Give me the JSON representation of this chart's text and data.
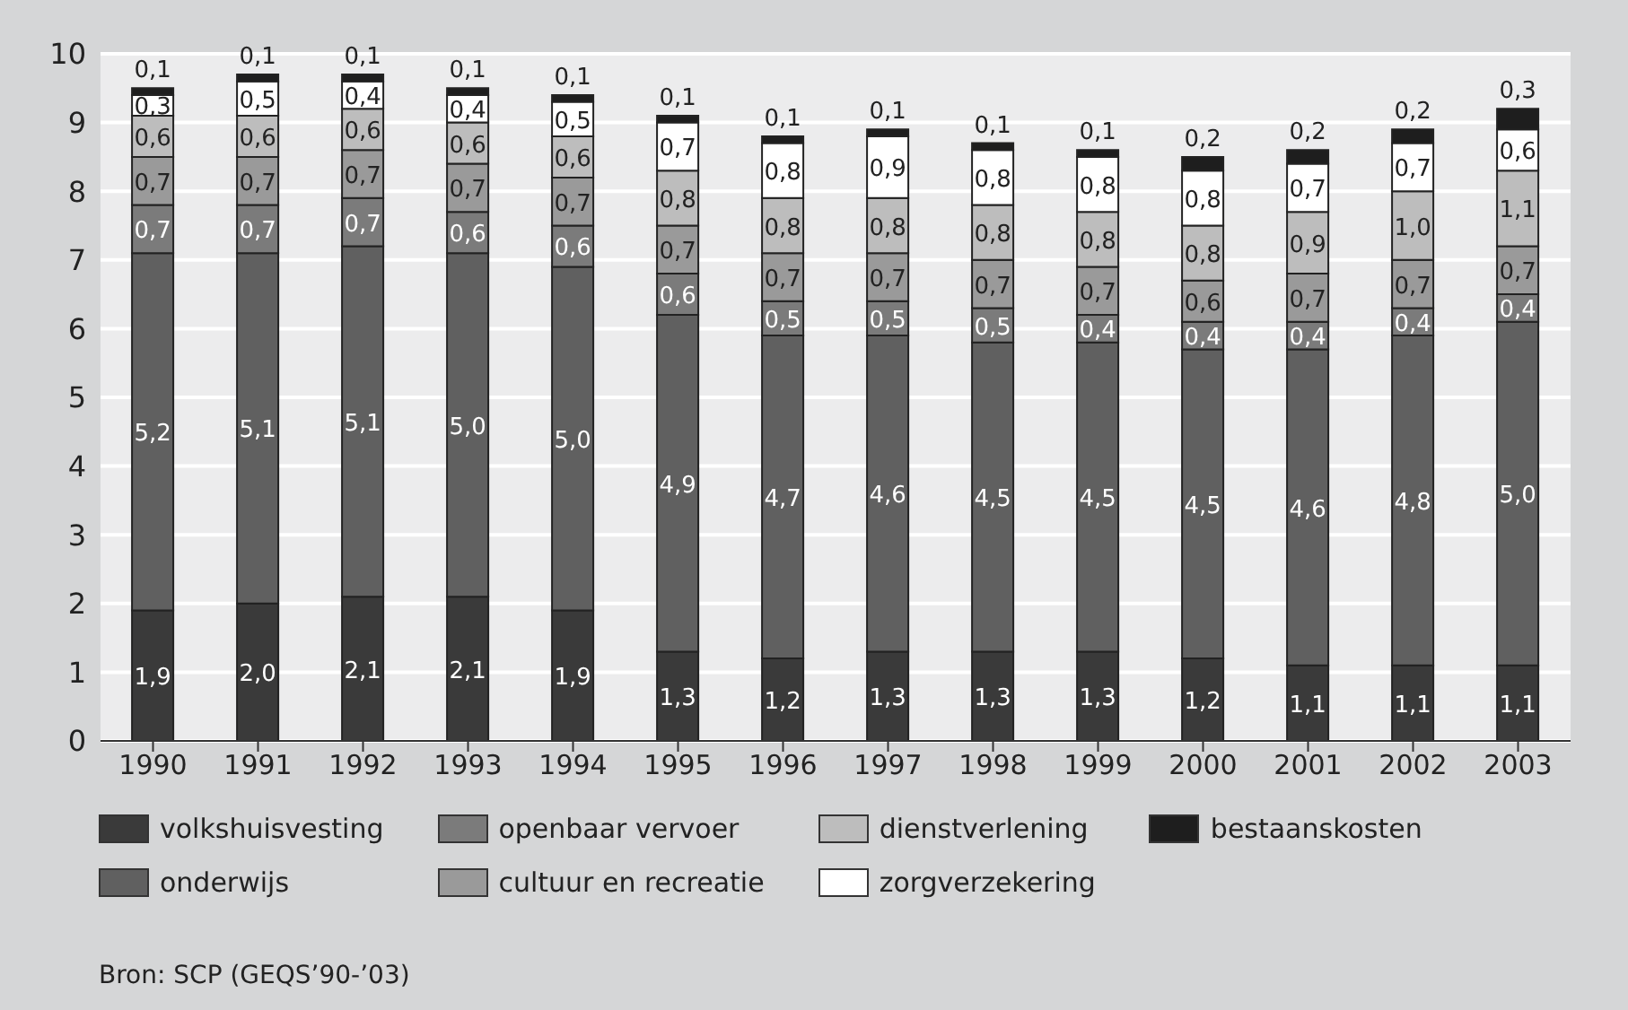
{
  "chart_data": {
    "type": "bar",
    "stacked": true,
    "categories": [
      "1990",
      "1991",
      "1992",
      "1993",
      "1994",
      "1995",
      "1996",
      "1997",
      "1998",
      "1999",
      "2000",
      "2001",
      "2002",
      "2003"
    ],
    "ylim": [
      0,
      10
    ],
    "yticks": [
      0,
      1,
      2,
      3,
      4,
      5,
      6,
      7,
      8,
      9,
      10
    ],
    "grid": "y",
    "legend": "bottom",
    "annotations": [
      "Bron: SCP (GEQS’90-’03)"
    ],
    "series": [
      {
        "name": "volkshuisvesting",
        "color": "#3a3a3a",
        "values": [
          1.9,
          2.0,
          2.1,
          2.1,
          1.9,
          1.3,
          1.2,
          1.3,
          1.3,
          1.3,
          1.2,
          1.1,
          1.1,
          1.1
        ],
        "value_labels": [
          "1,9",
          "2,0",
          "2,1",
          "2,1",
          "1,9",
          "1,3",
          "1,2",
          "1,3",
          "1,3",
          "1,3",
          "1,2",
          "1,1",
          "1,1",
          "1,1"
        ]
      },
      {
        "name": "onderwijs",
        "color": "#606060",
        "values": [
          5.2,
          5.1,
          5.1,
          5.0,
          5.0,
          4.9,
          4.7,
          4.6,
          4.5,
          4.5,
          4.5,
          4.6,
          4.8,
          5.0
        ],
        "value_labels": [
          "5,2",
          "5,1",
          "5,1",
          "5,0",
          "5,0",
          "4,9",
          "4,7",
          "4,6",
          "4,5",
          "4,5",
          "4,5",
          "4,6",
          "4,8",
          "5,0"
        ]
      },
      {
        "name": "openbaar vervoer",
        "color": "#7b7b7b",
        "values": [
          0.7,
          0.7,
          0.7,
          0.6,
          0.6,
          0.6,
          0.5,
          0.5,
          0.5,
          0.4,
          0.4,
          0.4,
          0.4,
          0.4
        ],
        "value_labels": [
          "0,7",
          "0,7",
          "0,7",
          "0,6",
          "0,6",
          "0,6",
          "0,5",
          "0,5",
          "0,5",
          "0,4",
          "0,4",
          "0,4",
          "0,4",
          "0,4"
        ]
      },
      {
        "name": "cultuur en recreatie",
        "color": "#9a9a9a",
        "values": [
          0.7,
          0.7,
          0.7,
          0.7,
          0.7,
          0.7,
          0.7,
          0.7,
          0.7,
          0.7,
          0.6,
          0.7,
          0.7,
          0.7
        ],
        "value_labels": [
          "0,7",
          "0,7",
          "0,7",
          "0,7",
          "0,7",
          "0,7",
          "0,7",
          "0,7",
          "0,7",
          "0,7",
          "0,6",
          "0,7",
          "0,7",
          "0,7"
        ]
      },
      {
        "name": "dienstverlening",
        "color": "#bdbdbd",
        "values": [
          0.6,
          0.6,
          0.6,
          0.6,
          0.6,
          0.8,
          0.8,
          0.8,
          0.8,
          0.8,
          0.8,
          0.9,
          1.0,
          1.1
        ],
        "value_labels": [
          "0,6",
          "0,6",
          "0,6",
          "0,6",
          "0,6",
          "0,8",
          "0,8",
          "0,8",
          "0,8",
          "0,8",
          "0,8",
          "0,9",
          "1,0",
          "1,1"
        ]
      },
      {
        "name": "zorgverzekering",
        "color": "#ffffff",
        "values": [
          0.3,
          0.5,
          0.4,
          0.4,
          0.5,
          0.7,
          0.8,
          0.9,
          0.8,
          0.8,
          0.8,
          0.7,
          0.7,
          0.6
        ],
        "value_labels": [
          "0,3",
          "0,5",
          "0,4",
          "0,4",
          "0,5",
          "0,7",
          "0,8",
          "0,9",
          "0,8",
          "0,8",
          "0,8",
          "0,7",
          "0,7",
          "0,6"
        ]
      },
      {
        "name": "bestaanskosten",
        "color": "#1e1e1e",
        "values": [
          0.1,
          0.1,
          0.1,
          0.1,
          0.1,
          0.1,
          0.1,
          0.1,
          0.1,
          0.1,
          0.2,
          0.2,
          0.2,
          0.3
        ],
        "value_labels": [
          "0,1",
          "0,1",
          "0,1",
          "0,1",
          "0,1",
          "0,1",
          "0,1",
          "0,1",
          "0,1",
          "0,1",
          "0,2",
          "0,2",
          "0,2",
          "0,3"
        ]
      }
    ]
  }
}
